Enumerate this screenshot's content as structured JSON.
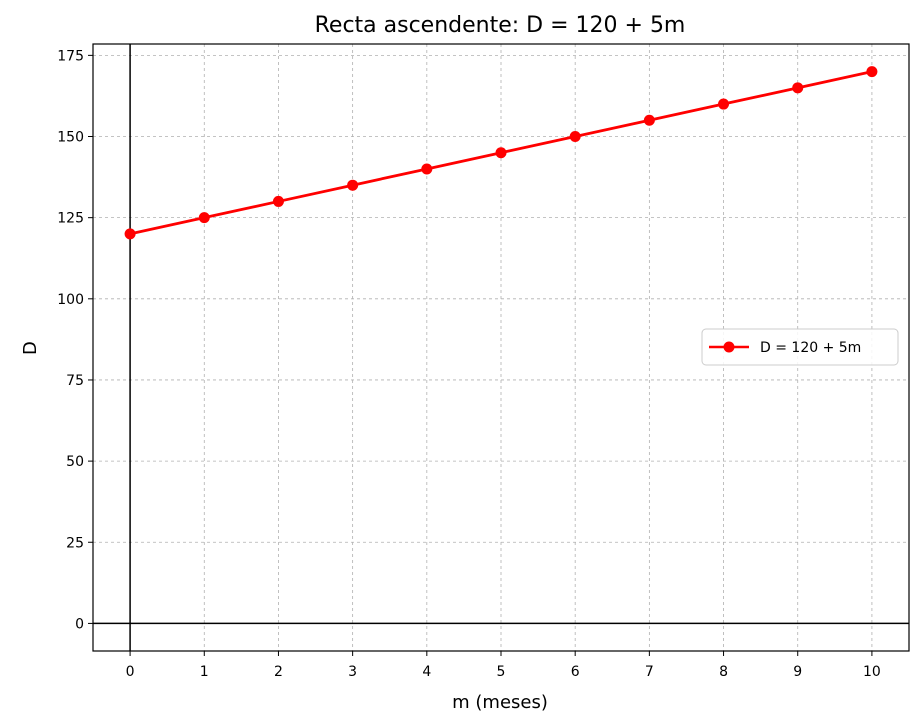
{
  "chart_data": {
    "type": "line",
    "title": "Recta ascendente: D = 120 + 5m",
    "xlabel": "m (meses)",
    "ylabel": "D",
    "xlim": [
      -0.5,
      10.5
    ],
    "ylim": [
      -8.5,
      178.5
    ],
    "xticks": [
      0,
      1,
      2,
      3,
      4,
      5,
      6,
      7,
      8,
      9,
      10
    ],
    "yticks": [
      0,
      25,
      50,
      75,
      100,
      125,
      150,
      175
    ],
    "grid": true,
    "legend_position": "center-right",
    "zero_lines": true,
    "series": [
      {
        "name": "D = 120 + 5m",
        "color": "#ff0000",
        "marker": "circle",
        "x": [
          0,
          1,
          2,
          3,
          4,
          5,
          6,
          7,
          8,
          9,
          10
        ],
        "y": [
          120,
          125,
          130,
          135,
          140,
          145,
          150,
          155,
          160,
          165,
          170
        ]
      }
    ]
  }
}
